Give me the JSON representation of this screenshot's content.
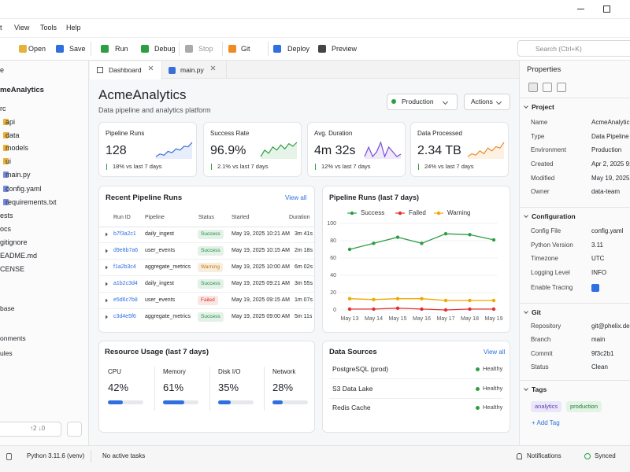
{
  "menu": [
    "t",
    "View",
    "Tools",
    "Help"
  ],
  "toolbar": {
    "buttons": [
      "Open",
      "Save",
      "Run",
      "Debug",
      "Stop",
      "Git",
      "Deploy",
      "Preview"
    ],
    "search": "Search (Ctrl+K)"
  },
  "sidebar": {
    "header": "e",
    "project": "meAnalytics",
    "items": [
      "rc",
      "api",
      "data",
      "models",
      "ui",
      "main.py",
      "config.yaml",
      "requirements.txt",
      "ests",
      "ocs",
      "gitignore",
      "EADME.md",
      "CENSE"
    ],
    "sections": [
      "base",
      "onments",
      "ules"
    ],
    "sync": "↑2 ↓0"
  },
  "tabs": [
    "Dashboard",
    "main.py"
  ],
  "header": {
    "title": "AcmeAnalytics",
    "subtitle": "Data pipeline and analytics platform",
    "environment": "Production",
    "actions": "Actions"
  },
  "kpis": [
    {
      "label": "Pipeline Runs",
      "value": "128",
      "change": "18% vs last 7 days",
      "color": "#3b6fd8",
      "trend": [
        3,
        4,
        3.5,
        5,
        4.5,
        6,
        5.5,
        7,
        6.8,
        8.5
      ]
    },
    {
      "label": "Success Rate",
      "value": "96.9%",
      "change": "2.1% vs last 7 days",
      "color": "#2e9e44",
      "trend": [
        5,
        6,
        5.5,
        6.5,
        6,
        6.8,
        6.2,
        7,
        6.6,
        7.2
      ]
    },
    {
      "label": "Avg. Duration",
      "value": "4m 32s",
      "change": "12% vs last 7 days",
      "color": "#7b4bd6",
      "trend": [
        5,
        7,
        5,
        6,
        8,
        5,
        7,
        6,
        5,
        5.5
      ]
    },
    {
      "label": "Data Processed",
      "value": "2.34 TB",
      "change": "24% vs last 7 days",
      "color": "#f08a24",
      "trend": [
        3,
        4,
        3.5,
        5,
        4,
        6,
        5,
        6.5,
        6,
        8
      ]
    }
  ],
  "recent_runs": {
    "title": "Recent Pipeline Runs",
    "view_all": "View all",
    "columns": [
      "Run ID",
      "Pipeline",
      "Status",
      "Started",
      "Duration"
    ],
    "rows": [
      {
        "id": "b7f3a2c1",
        "pipeline": "daily_ingest",
        "status": "Success",
        "status_color": "#1e8e3e",
        "started": "May 19, 2025 10:21 AM",
        "duration": "3m 41s"
      },
      {
        "id": "d9e8b7a6",
        "pipeline": "user_events",
        "status": "Success",
        "status_color": "#1e8e3e",
        "started": "May 19, 2025 10:15 AM",
        "duration": "2m 18s"
      },
      {
        "id": "f1a2b3c4",
        "pipeline": "aggregate_metrics",
        "status": "Warning",
        "status_color": "#c77700",
        "started": "May 19, 2025 10:00 AM",
        "duration": "6m 02s"
      },
      {
        "id": "a1b2c3d4",
        "pipeline": "daily_ingest",
        "status": "Success",
        "status_color": "#1e8e3e",
        "started": "May 19, 2025 09:21 AM",
        "duration": "3m 55s"
      },
      {
        "id": "e5d6c7b8",
        "pipeline": "user_events",
        "status": "Failed",
        "status_color": "#d93025",
        "started": "May 19, 2025 09:15 AM",
        "duration": "1m 07s"
      },
      {
        "id": "c3d4e5f6",
        "pipeline": "aggregate_metrics",
        "status": "Success",
        "status_color": "#1e8e3e",
        "started": "May 19, 2025 09:00 AM",
        "duration": "5m 11s"
      }
    ]
  },
  "chart_data": {
    "type": "line",
    "title": "Pipeline Runs (last 7 days)",
    "categories": [
      "May 13",
      "May 14",
      "May 15",
      "May 16",
      "May 17",
      "May 18",
      "May 19"
    ],
    "series": [
      {
        "name": "Success",
        "color": "#2e9e44",
        "values": [
          70,
          77,
          84,
          77,
          88,
          87,
          81
        ]
      },
      {
        "name": "Failed",
        "color": "#e03131",
        "values": [
          1,
          1,
          2,
          1,
          0,
          1,
          1
        ]
      },
      {
        "name": "Warning",
        "color": "#f0a800",
        "values": [
          13,
          12,
          13,
          13,
          11,
          11,
          11
        ]
      }
    ],
    "ylim": [
      0,
      100
    ],
    "yticks": [
      0,
      20,
      40,
      60,
      80,
      100
    ],
    "grid": true
  },
  "resource_usage": {
    "title": "Resource Usage (last 7 days)",
    "xlim": [
      0,
      100
    ],
    "color": "#2f6fe0",
    "items": [
      {
        "name": "CPU",
        "value": 42,
        "value_label": "42%"
      },
      {
        "name": "Memory",
        "value": 61,
        "value_label": "61%"
      },
      {
        "name": "Disk I/O",
        "value": 35,
        "value_label": "35%"
      },
      {
        "name": "Network",
        "value": 28,
        "value_label": "28%"
      }
    ]
  },
  "data_sources": {
    "title": "Data Sources",
    "view_all": "View all",
    "rows": [
      {
        "name": "PostgreSQL (prod)",
        "status": "Healthy"
      },
      {
        "name": "S3 Data Lake",
        "status": "Healthy"
      },
      {
        "name": "Redis Cache",
        "status": "Healthy"
      }
    ]
  },
  "properties": {
    "title": "Properties",
    "sections": [
      {
        "title": "Project",
        "rows": [
          {
            "label": "Name",
            "value": "AcmeAnalytic"
          },
          {
            "label": "Type",
            "value": "Data Pipeline"
          },
          {
            "label": "Environment",
            "value": "Production"
          },
          {
            "label": "Created",
            "value": "Apr 2, 2025 9:"
          },
          {
            "label": "Modified",
            "value": "May 19, 2025 1"
          },
          {
            "label": "Owner",
            "value": "data-team"
          }
        ]
      },
      {
        "title": "Configuration",
        "rows": [
          {
            "label": "Config File",
            "value": "config.yaml"
          },
          {
            "label": "Python Version",
            "value": "3.11"
          },
          {
            "label": "Timezone",
            "value": "UTC"
          },
          {
            "label": "Logging Level",
            "value": "INFO"
          },
          {
            "label": "Enable Tracing",
            "checked": true
          }
        ]
      },
      {
        "title": "Git",
        "rows": [
          {
            "label": "Repository",
            "value": "git@phelix.de"
          },
          {
            "label": "Branch",
            "value": "main"
          },
          {
            "label": "Commit",
            "value": "9f3c2b1"
          },
          {
            "label": "Status",
            "value": "Clean"
          }
        ]
      }
    ],
    "tags": {
      "title": "Tags",
      "items": [
        "analytics",
        "production"
      ],
      "add": "+ Add Tag"
    }
  },
  "status_bar": {
    "python": "Python 3.11.6 (venv)",
    "tasks": "No active tasks",
    "notifications": "Notifications",
    "sync": "Synced"
  }
}
